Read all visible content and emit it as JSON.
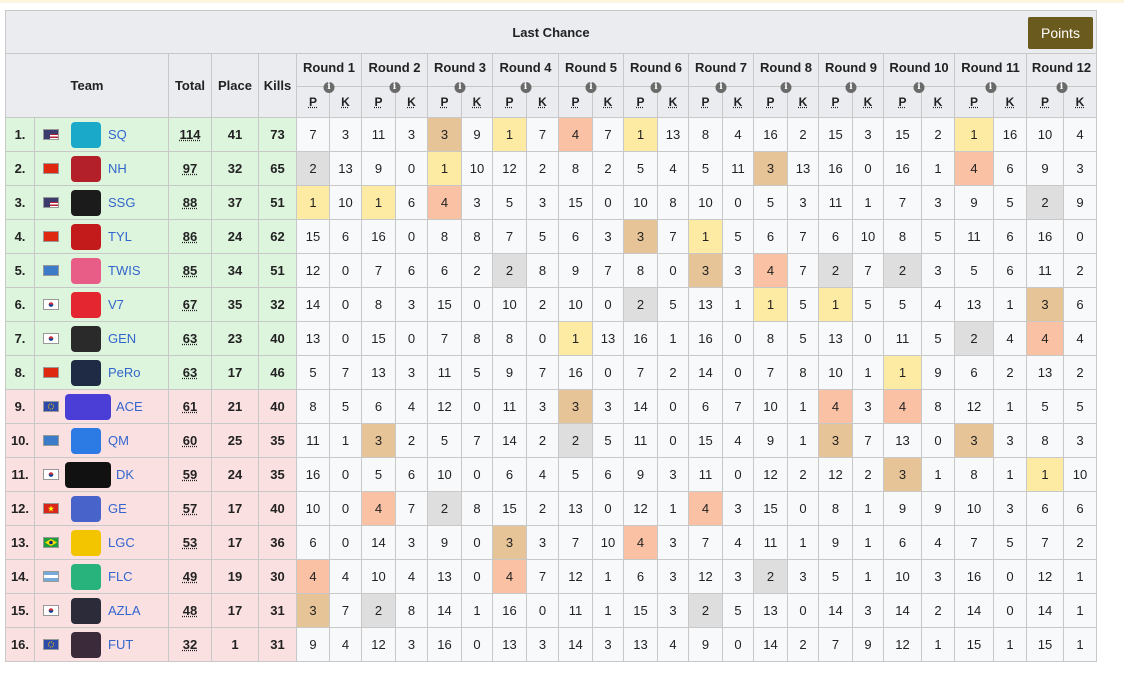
{
  "title": "Last Chance",
  "points_button": "Points",
  "headers": {
    "team": "Team",
    "total": "Total",
    "place": "Place",
    "kills": "Kills",
    "p": "P",
    "k": "K",
    "info": "i"
  },
  "rounds": [
    "Round 1",
    "Round 2",
    "Round 3",
    "Round 4",
    "Round 5",
    "Round 6",
    "Round 7",
    "Round 8",
    "Round 9",
    "Round 10",
    "Round 11",
    "Round 12"
  ],
  "colors": {
    "qualified": "#ddf4dd",
    "eliminated": "#fbe0e2",
    "place_1": "#fdeba3",
    "place_2": "#dedede",
    "place_3": "#e6c497",
    "place_4": "#fbc1a5",
    "points_button": "#6b5a1e",
    "link": "#3366cc"
  },
  "rows": [
    {
      "rank": "1.",
      "flag": "us",
      "logo": "sq-logo-icon",
      "team": "SQ",
      "total": "114",
      "place": "41",
      "kills": "73",
      "status": "qualified",
      "rounds": [
        [
          "7",
          "3"
        ],
        [
          "11",
          "3"
        ],
        [
          "3",
          "9"
        ],
        [
          "1",
          "7"
        ],
        [
          "4",
          "7"
        ],
        [
          "1",
          "13"
        ],
        [
          "8",
          "4"
        ],
        [
          "16",
          "2"
        ],
        [
          "15",
          "3"
        ],
        [
          "15",
          "2"
        ],
        [
          "1",
          "16"
        ],
        [
          "10",
          "4"
        ]
      ]
    },
    {
      "rank": "2.",
      "flag": "cn",
      "logo": "nh-logo-icon",
      "team": "NH",
      "total": "97",
      "place": "32",
      "kills": "65",
      "status": "qualified",
      "rounds": [
        [
          "2",
          "13"
        ],
        [
          "9",
          "0"
        ],
        [
          "1",
          "10"
        ],
        [
          "12",
          "2"
        ],
        [
          "8",
          "2"
        ],
        [
          "5",
          "4"
        ],
        [
          "5",
          "11"
        ],
        [
          "3",
          "13"
        ],
        [
          "16",
          "0"
        ],
        [
          "16",
          "1"
        ],
        [
          "4",
          "6"
        ],
        [
          "9",
          "3"
        ]
      ]
    },
    {
      "rank": "3.",
      "flag": "us",
      "logo": "ssg-logo-icon",
      "team": "SSG",
      "total": "88",
      "place": "37",
      "kills": "51",
      "status": "qualified",
      "rounds": [
        [
          "1",
          "10"
        ],
        [
          "1",
          "6"
        ],
        [
          "4",
          "3"
        ],
        [
          "5",
          "3"
        ],
        [
          "15",
          "0"
        ],
        [
          "10",
          "8"
        ],
        [
          "10",
          "0"
        ],
        [
          "5",
          "3"
        ],
        [
          "11",
          "1"
        ],
        [
          "7",
          "3"
        ],
        [
          "9",
          "5"
        ],
        [
          "2",
          "9"
        ]
      ]
    },
    {
      "rank": "4.",
      "flag": "cn",
      "logo": "tyl-logo-icon",
      "team": "TYL",
      "total": "86",
      "place": "24",
      "kills": "62",
      "status": "qualified",
      "rounds": [
        [
          "15",
          "6"
        ],
        [
          "16",
          "0"
        ],
        [
          "8",
          "8"
        ],
        [
          "7",
          "5"
        ],
        [
          "6",
          "3"
        ],
        [
          "3",
          "7"
        ],
        [
          "1",
          "5"
        ],
        [
          "6",
          "7"
        ],
        [
          "6",
          "10"
        ],
        [
          "8",
          "5"
        ],
        [
          "11",
          "6"
        ],
        [
          "16",
          "0"
        ]
      ]
    },
    {
      "rank": "5.",
      "flag": "tw",
      "logo": "twis-logo-icon",
      "team": "TWIS",
      "total": "85",
      "place": "34",
      "kills": "51",
      "status": "qualified",
      "rounds": [
        [
          "12",
          "0"
        ],
        [
          "7",
          "6"
        ],
        [
          "6",
          "2"
        ],
        [
          "2",
          "8"
        ],
        [
          "9",
          "7"
        ],
        [
          "8",
          "0"
        ],
        [
          "3",
          "3"
        ],
        [
          "4",
          "7"
        ],
        [
          "2",
          "7"
        ],
        [
          "2",
          "3"
        ],
        [
          "5",
          "6"
        ],
        [
          "11",
          "2"
        ]
      ]
    },
    {
      "rank": "6.",
      "flag": "kr",
      "logo": "v7-logo-icon",
      "team": "V7",
      "total": "67",
      "place": "35",
      "kills": "32",
      "status": "qualified",
      "rounds": [
        [
          "14",
          "0"
        ],
        [
          "8",
          "3"
        ],
        [
          "15",
          "0"
        ],
        [
          "10",
          "2"
        ],
        [
          "10",
          "0"
        ],
        [
          "2",
          "5"
        ],
        [
          "13",
          "1"
        ],
        [
          "1",
          "5"
        ],
        [
          "1",
          "5"
        ],
        [
          "5",
          "4"
        ],
        [
          "13",
          "1"
        ],
        [
          "3",
          "6"
        ]
      ]
    },
    {
      "rank": "7.",
      "flag": "kr",
      "logo": "gen-logo-icon",
      "team": "GEN",
      "total": "63",
      "place": "23",
      "kills": "40",
      "status": "qualified",
      "rounds": [
        [
          "13",
          "0"
        ],
        [
          "15",
          "0"
        ],
        [
          "7",
          "8"
        ],
        [
          "8",
          "0"
        ],
        [
          "1",
          "13"
        ],
        [
          "16",
          "1"
        ],
        [
          "16",
          "0"
        ],
        [
          "8",
          "5"
        ],
        [
          "13",
          "0"
        ],
        [
          "11",
          "5"
        ],
        [
          "2",
          "4"
        ],
        [
          "4",
          "4"
        ]
      ]
    },
    {
      "rank": "8.",
      "flag": "cn",
      "logo": "pero-logo-icon",
      "team": "PeRo",
      "total": "63",
      "place": "17",
      "kills": "46",
      "status": "qualified",
      "rounds": [
        [
          "5",
          "7"
        ],
        [
          "13",
          "3"
        ],
        [
          "11",
          "5"
        ],
        [
          "9",
          "7"
        ],
        [
          "16",
          "0"
        ],
        [
          "7",
          "2"
        ],
        [
          "14",
          "0"
        ],
        [
          "7",
          "8"
        ],
        [
          "10",
          "1"
        ],
        [
          "1",
          "9"
        ],
        [
          "6",
          "2"
        ],
        [
          "13",
          "2"
        ]
      ]
    },
    {
      "rank": "9.",
      "flag": "eu",
      "logo": "ace-logo-icon",
      "team": "ACE",
      "total": "61",
      "place": "21",
      "kills": "40",
      "status": "eliminated",
      "rounds": [
        [
          "8",
          "5"
        ],
        [
          "6",
          "4"
        ],
        [
          "12",
          "0"
        ],
        [
          "11",
          "3"
        ],
        [
          "3",
          "3"
        ],
        [
          "14",
          "0"
        ],
        [
          "6",
          "7"
        ],
        [
          "10",
          "1"
        ],
        [
          "4",
          "3"
        ],
        [
          "4",
          "8"
        ],
        [
          "12",
          "1"
        ],
        [
          "5",
          "5"
        ]
      ]
    },
    {
      "rank": "10.",
      "flag": "tw",
      "logo": "qm-logo-icon",
      "team": "QM",
      "total": "60",
      "place": "25",
      "kills": "35",
      "status": "eliminated",
      "rounds": [
        [
          "11",
          "1"
        ],
        [
          "3",
          "2"
        ],
        [
          "5",
          "7"
        ],
        [
          "14",
          "2"
        ],
        [
          "2",
          "5"
        ],
        [
          "11",
          "0"
        ],
        [
          "15",
          "4"
        ],
        [
          "9",
          "1"
        ],
        [
          "3",
          "7"
        ],
        [
          "13",
          "0"
        ],
        [
          "3",
          "3"
        ],
        [
          "8",
          "3"
        ]
      ]
    },
    {
      "rank": "11.",
      "flag": "kr",
      "logo": "dk-logo-icon",
      "team": "DK",
      "total": "59",
      "place": "24",
      "kills": "35",
      "status": "eliminated",
      "rounds": [
        [
          "16",
          "0"
        ],
        [
          "5",
          "6"
        ],
        [
          "10",
          "0"
        ],
        [
          "6",
          "4"
        ],
        [
          "5",
          "6"
        ],
        [
          "9",
          "3"
        ],
        [
          "11",
          "0"
        ],
        [
          "12",
          "2"
        ],
        [
          "12",
          "2"
        ],
        [
          "3",
          "1"
        ],
        [
          "8",
          "1"
        ],
        [
          "1",
          "10"
        ]
      ]
    },
    {
      "rank": "12.",
      "flag": "vn",
      "logo": "ge-logo-icon",
      "team": "GE",
      "total": "57",
      "place": "17",
      "kills": "40",
      "status": "eliminated",
      "rounds": [
        [
          "10",
          "0"
        ],
        [
          "4",
          "7"
        ],
        [
          "2",
          "8"
        ],
        [
          "15",
          "2"
        ],
        [
          "13",
          "0"
        ],
        [
          "12",
          "1"
        ],
        [
          "4",
          "3"
        ],
        [
          "15",
          "0"
        ],
        [
          "8",
          "1"
        ],
        [
          "9",
          "9"
        ],
        [
          "10",
          "3"
        ],
        [
          "6",
          "6"
        ]
      ]
    },
    {
      "rank": "13.",
      "flag": "br",
      "logo": "lgc-logo-icon",
      "team": "LGC",
      "total": "53",
      "place": "17",
      "kills": "36",
      "status": "eliminated",
      "rounds": [
        [
          "6",
          "0"
        ],
        [
          "14",
          "3"
        ],
        [
          "9",
          "0"
        ],
        [
          "3",
          "3"
        ],
        [
          "7",
          "10"
        ],
        [
          "4",
          "3"
        ],
        [
          "7",
          "4"
        ],
        [
          "11",
          "1"
        ],
        [
          "9",
          "1"
        ],
        [
          "6",
          "4"
        ],
        [
          "7",
          "5"
        ],
        [
          "7",
          "2"
        ]
      ]
    },
    {
      "rank": "14.",
      "flag": "ar",
      "logo": "flc-logo-icon",
      "team": "FLC",
      "total": "49",
      "place": "19",
      "kills": "30",
      "status": "eliminated",
      "rounds": [
        [
          "4",
          "4"
        ],
        [
          "10",
          "4"
        ],
        [
          "13",
          "0"
        ],
        [
          "4",
          "7"
        ],
        [
          "12",
          "1"
        ],
        [
          "6",
          "3"
        ],
        [
          "12",
          "3"
        ],
        [
          "2",
          "3"
        ],
        [
          "5",
          "1"
        ],
        [
          "10",
          "3"
        ],
        [
          "16",
          "0"
        ],
        [
          "12",
          "1"
        ]
      ]
    },
    {
      "rank": "15.",
      "flag": "kr",
      "logo": "azla-logo-icon",
      "team": "AZLA",
      "total": "48",
      "place": "17",
      "kills": "31",
      "status": "eliminated",
      "rounds": [
        [
          "3",
          "7"
        ],
        [
          "2",
          "8"
        ],
        [
          "14",
          "1"
        ],
        [
          "16",
          "0"
        ],
        [
          "11",
          "1"
        ],
        [
          "15",
          "3"
        ],
        [
          "2",
          "5"
        ],
        [
          "13",
          "0"
        ],
        [
          "14",
          "3"
        ],
        [
          "14",
          "2"
        ],
        [
          "14",
          "0"
        ],
        [
          "14",
          "1"
        ]
      ]
    },
    {
      "rank": "16.",
      "flag": "eu",
      "logo": "fut-logo-icon",
      "team": "FUT",
      "total": "32",
      "place": "1",
      "kills": "31",
      "status": "eliminated",
      "rounds": [
        [
          "9",
          "4"
        ],
        [
          "12",
          "3"
        ],
        [
          "16",
          "0"
        ],
        [
          "13",
          "3"
        ],
        [
          "14",
          "3"
        ],
        [
          "13",
          "4"
        ],
        [
          "9",
          "0"
        ],
        [
          "14",
          "2"
        ],
        [
          "7",
          "9"
        ],
        [
          "12",
          "1"
        ],
        [
          "15",
          "1"
        ],
        [
          "15",
          "1"
        ]
      ]
    }
  ]
}
